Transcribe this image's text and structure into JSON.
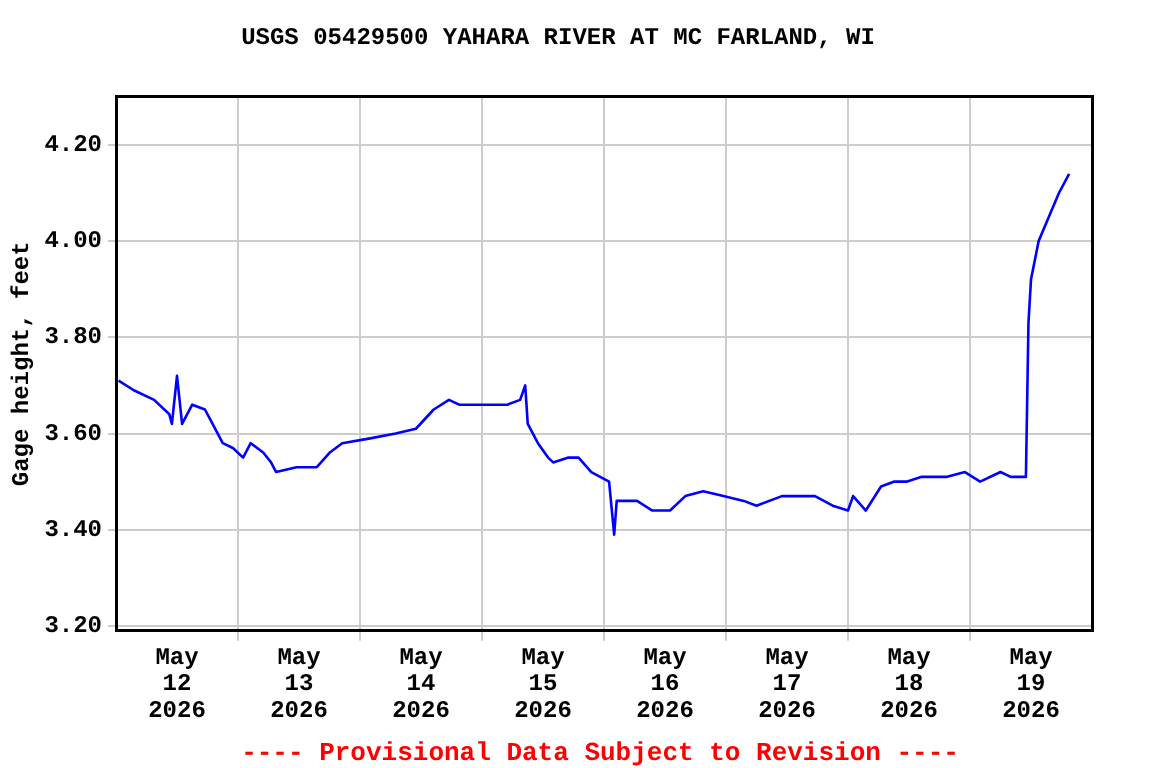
{
  "chart_data": {
    "type": "line",
    "title": "USGS 05429500 YAHARA RIVER AT MC FARLAND, WI",
    "ylabel": "Gage height, feet",
    "annotations": [
      "---- Provisional Data Subject to Revision ----"
    ],
    "x": [
      "2026-05-12T00:30",
      "2026-05-12T03:30",
      "2026-05-12T07:30",
      "2026-05-12T10:30",
      "2026-05-12T11:00",
      "2026-05-12T12:00",
      "2026-05-12T13:00",
      "2026-05-12T15:00",
      "2026-05-12T17:30",
      "2026-05-12T19:00",
      "2026-05-12T21:00",
      "2026-05-12T23:00",
      "2026-05-13T01:00",
      "2026-05-13T02:30",
      "2026-05-13T05:00",
      "2026-05-13T06:30",
      "2026-05-13T07:30",
      "2026-05-13T11:30",
      "2026-05-13T15:30",
      "2026-05-13T18:00",
      "2026-05-13T20:30",
      "2026-05-14T02:00",
      "2026-05-14T07:00",
      "2026-05-14T11:00",
      "2026-05-14T14:30",
      "2026-05-14T17:30",
      "2026-05-14T19:30",
      "2026-05-15T01:00",
      "2026-05-15T05:00",
      "2026-05-15T07:30",
      "2026-05-15T08:30",
      "2026-05-15T09:00",
      "2026-05-15T11:00",
      "2026-05-15T13:00",
      "2026-05-15T14:00",
      "2026-05-15T17:00",
      "2026-05-15T19:00",
      "2026-05-15T21:30",
      "2026-05-16T01:00",
      "2026-05-16T02:00",
      "2026-05-16T02:30",
      "2026-05-16T06:30",
      "2026-05-16T09:30",
      "2026-05-16T13:00",
      "2026-05-16T16:00",
      "2026-05-16T19:30",
      "2026-05-16T23:30",
      "2026-05-17T03:30",
      "2026-05-17T06:00",
      "2026-05-17T11:00",
      "2026-05-17T17:30",
      "2026-05-17T21:00",
      "2026-05-18T00:00",
      "2026-05-18T01:00",
      "2026-05-18T03:30",
      "2026-05-18T06:30",
      "2026-05-18T09:00",
      "2026-05-18T11:30",
      "2026-05-18T14:30",
      "2026-05-18T19:30",
      "2026-05-18T23:00",
      "2026-05-19T02:00",
      "2026-05-19T06:00",
      "2026-05-19T08:00",
      "2026-05-19T11:00",
      "2026-05-19T11:30",
      "2026-05-19T12:00",
      "2026-05-19T13:30",
      "2026-05-19T15:30",
      "2026-05-19T17:30",
      "2026-05-19T19:30"
    ],
    "series": [
      {
        "color": "#0000ff",
        "values": [
          3.71,
          3.69,
          3.67,
          3.64,
          3.62,
          3.72,
          3.62,
          3.66,
          3.65,
          3.62,
          3.58,
          3.57,
          3.55,
          3.58,
          3.56,
          3.54,
          3.52,
          3.53,
          3.53,
          3.56,
          3.58,
          3.59,
          3.6,
          3.61,
          3.65,
          3.67,
          3.66,
          3.66,
          3.66,
          3.67,
          3.7,
          3.62,
          3.58,
          3.55,
          3.54,
          3.55,
          3.55,
          3.52,
          3.5,
          3.39,
          3.46,
          3.46,
          3.44,
          3.44,
          3.47,
          3.48,
          3.47,
          3.46,
          3.45,
          3.47,
          3.47,
          3.45,
          3.44,
          3.47,
          3.44,
          3.49,
          3.5,
          3.5,
          3.51,
          3.51,
          3.52,
          3.5,
          3.52,
          3.51,
          3.51,
          3.83,
          3.92,
          4.0,
          4.05,
          4.1,
          4.14
        ]
      }
    ],
    "xlim": [
      "2026-05-12T00:00",
      "2026-05-20T00:00"
    ],
    "xticks": [
      {
        "value": "2026-05-12T12:00",
        "label": "May\n12\n2026"
      },
      {
        "value": "2026-05-13T00:00",
        "label": null
      },
      {
        "value": "2026-05-13T12:00",
        "label": "May\n13\n2026"
      },
      {
        "value": "2026-05-14T00:00",
        "label": null
      },
      {
        "value": "2026-05-14T12:00",
        "label": "May\n14\n2026"
      },
      {
        "value": "2026-05-15T00:00",
        "label": null
      },
      {
        "value": "2026-05-15T12:00",
        "label": "May\n15\n2026"
      },
      {
        "value": "2026-05-16T00:00",
        "label": null
      },
      {
        "value": "2026-05-16T12:00",
        "label": "May\n16\n2026"
      },
      {
        "value": "2026-05-17T00:00",
        "label": null
      },
      {
        "value": "2026-05-17T12:00",
        "label": "May\n17\n2026"
      },
      {
        "value": "2026-05-18T00:00",
        "label": null
      },
      {
        "value": "2026-05-18T12:00",
        "label": "May\n18\n2026"
      },
      {
        "value": "2026-05-19T00:00",
        "label": null
      },
      {
        "value": "2026-05-19T12:00",
        "label": "May\n19\n2026"
      }
    ],
    "ylim": [
      3.19,
      4.3
    ],
    "yticks": [
      {
        "value": 3.2,
        "label": "3.20"
      },
      {
        "value": 3.4,
        "label": "3.40"
      },
      {
        "value": 3.6,
        "label": "3.60"
      },
      {
        "value": 3.8,
        "label": "3.80"
      },
      {
        "value": 4.0,
        "label": "4.00"
      },
      {
        "value": 4.2,
        "label": "4.20"
      }
    ],
    "grid": true,
    "legend": false,
    "marker": "none",
    "line_style": "solid"
  }
}
